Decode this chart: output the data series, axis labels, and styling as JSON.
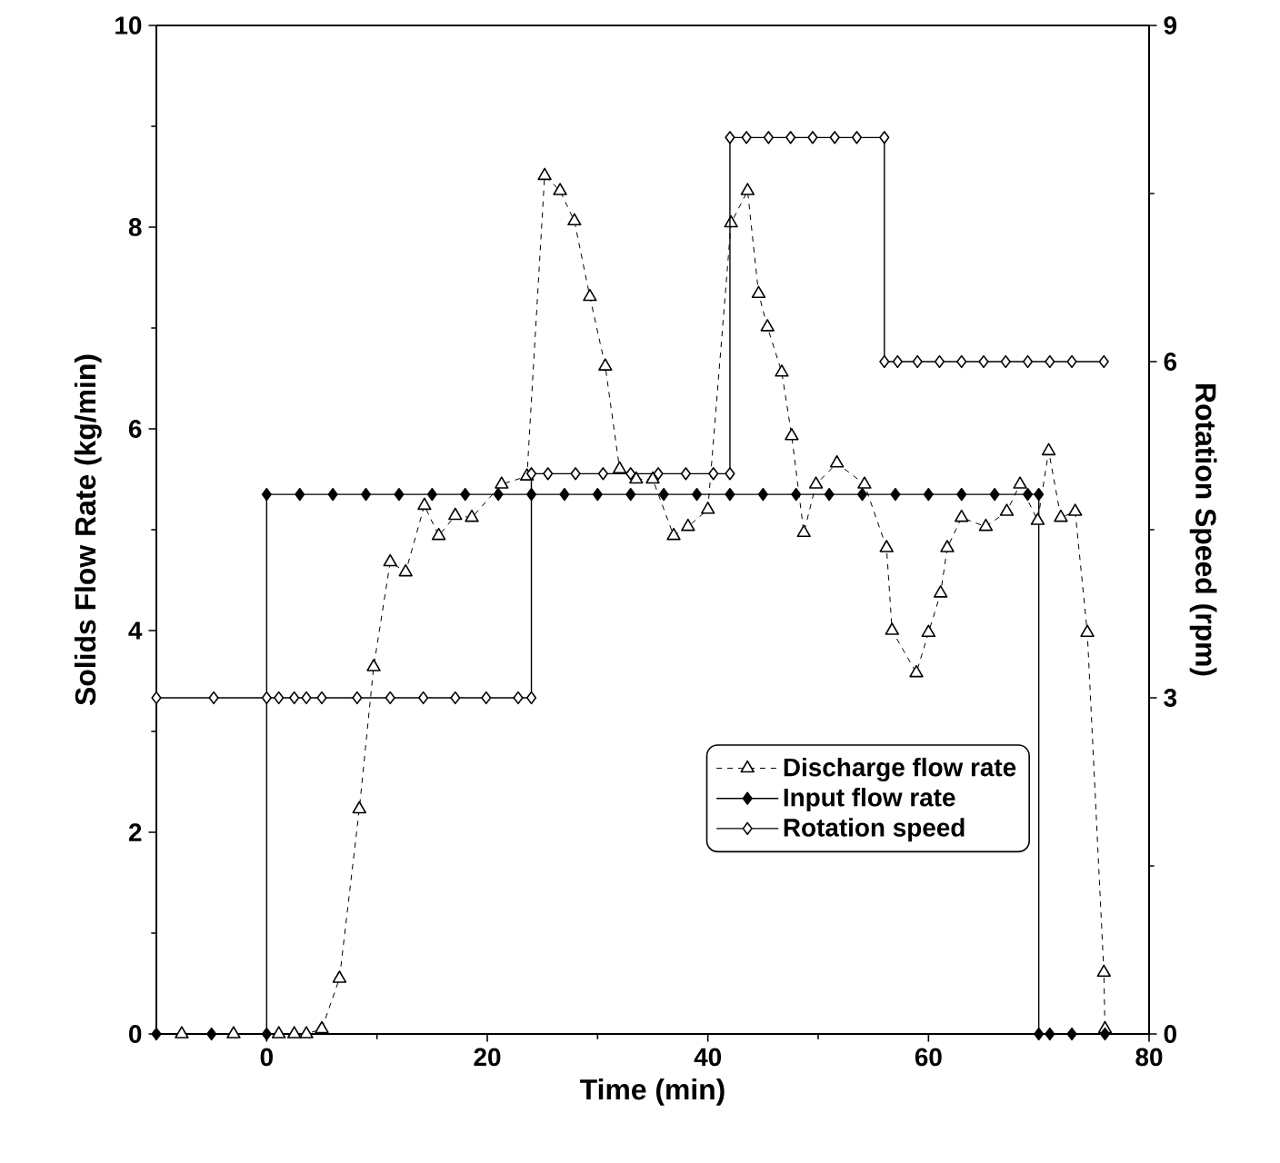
{
  "chart_data": {
    "type": "line",
    "xlabel": "Time (min)",
    "ylabel": "Solids Flow Rate (kg/min)",
    "y2label": "Rotation Speed (rpm)",
    "xlim": [
      -10,
      80
    ],
    "ylim": [
      0,
      10
    ],
    "y2lim": [
      0,
      9
    ],
    "xticks": [
      0,
      20,
      40,
      60,
      80
    ],
    "yticks": [
      0,
      2,
      4,
      6,
      8,
      10
    ],
    "y2ticks": [
      0,
      3,
      6,
      9
    ],
    "legend": "bottom right",
    "series": [
      {
        "name": "Discharge flow rate",
        "color": "#000000",
        "marker": "triangle",
        "line_style": "dashed",
        "x": [
          -7.7,
          -3,
          1.1,
          2.5,
          3.6,
          5,
          6.6,
          8.4,
          9.7,
          11.2,
          12.6,
          14.3,
          15.6,
          17.1,
          18.6,
          21.3,
          23.6,
          25.2,
          26.6,
          27.9,
          29.3,
          30.7,
          32,
          33.5,
          35,
          36.9,
          38.2,
          40,
          42.1,
          43.6,
          44.6,
          45.4,
          46.7,
          47.6,
          48.7,
          49.8,
          51.7,
          54.2,
          56.2,
          56.7,
          58.9,
          60,
          61.1,
          61.7,
          63,
          65.2,
          67.1,
          68.3,
          69.9,
          70.9,
          72,
          73.3,
          74.4,
          75.9,
          76
        ],
        "values": [
          0,
          0,
          0,
          0,
          0,
          0.05,
          0.55,
          2.23,
          3.64,
          4.68,
          4.58,
          5.24,
          4.94,
          5.14,
          5.12,
          5.45,
          5.53,
          8.51,
          8.36,
          8.06,
          7.31,
          6.62,
          5.6,
          5.5,
          5.5,
          4.94,
          5.03,
          5.2,
          8.04,
          8.36,
          7.34,
          7.01,
          6.56,
          5.93,
          4.97,
          5.45,
          5.66,
          5.45,
          4.82,
          4.0,
          3.58,
          3.98,
          4.37,
          4.82,
          5.12,
          5.03,
          5.18,
          5.45,
          5.09,
          5.78,
          5.12,
          5.18,
          3.98,
          0.61,
          0.05
        ]
      },
      {
        "name": "Input flow rate",
        "color": "#000000",
        "marker": "diamond",
        "line_style": "solid",
        "x": [
          -10,
          -5,
          0,
          0,
          3,
          6,
          9,
          12,
          15,
          18,
          21,
          24,
          27,
          30,
          33,
          36,
          39,
          42,
          45,
          48,
          51,
          54,
          57,
          60,
          63,
          66,
          69,
          70,
          70,
          71,
          73,
          76
        ],
        "values": [
          0,
          0,
          0,
          5.35,
          5.35,
          5.35,
          5.35,
          5.35,
          5.35,
          5.35,
          5.35,
          5.35,
          5.35,
          5.35,
          5.35,
          5.35,
          5.35,
          5.35,
          5.35,
          5.35,
          5.35,
          5.35,
          5.35,
          5.35,
          5.35,
          5.35,
          5.35,
          5.35,
          0,
          0,
          0,
          0
        ]
      },
      {
        "name": "Rotation speed",
        "color": "#000000",
        "marker": "diamond",
        "line_style": "solid",
        "axis": "y2",
        "x": [
          -10,
          -4.8,
          0,
          1.1,
          2.5,
          3.6,
          5,
          8.2,
          11.2,
          14.2,
          17.1,
          19.9,
          22.8,
          24,
          24,
          25.5,
          28,
          30.5,
          33,
          35.5,
          38,
          40.5,
          42,
          42,
          43.5,
          45.5,
          47.5,
          49.5,
          51.5,
          53.5,
          56,
          56,
          57.2,
          59,
          61,
          63,
          65,
          67,
          69,
          71,
          73,
          75.9
        ],
        "values": [
          3,
          3,
          3,
          3,
          3,
          3,
          3,
          3,
          3,
          3,
          3,
          3,
          3,
          3,
          5,
          5,
          5,
          5,
          5,
          5,
          5,
          5,
          5,
          8,
          8,
          8,
          8,
          8,
          8,
          8,
          8,
          6,
          6,
          6,
          6,
          6,
          6,
          6,
          6,
          6,
          6,
          6
        ]
      }
    ]
  }
}
